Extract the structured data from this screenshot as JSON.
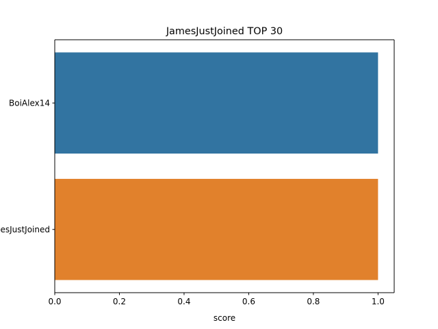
{
  "chart_data": {
    "type": "bar",
    "orientation": "horizontal",
    "title": "JamesJustJoined TOP 30",
    "xlabel": "score",
    "ylabel": "",
    "xlim": [
      0,
      1.05
    ],
    "xticks": [
      "0.0",
      "0.2",
      "0.4",
      "0.6",
      "0.8",
      "1.0"
    ],
    "categories": [
      "BoiAlex14",
      "JamesJustJoined"
    ],
    "values": [
      1.0,
      1.0
    ],
    "colors": [
      "#3274a1",
      "#e1812c"
    ],
    "grid": false
  }
}
